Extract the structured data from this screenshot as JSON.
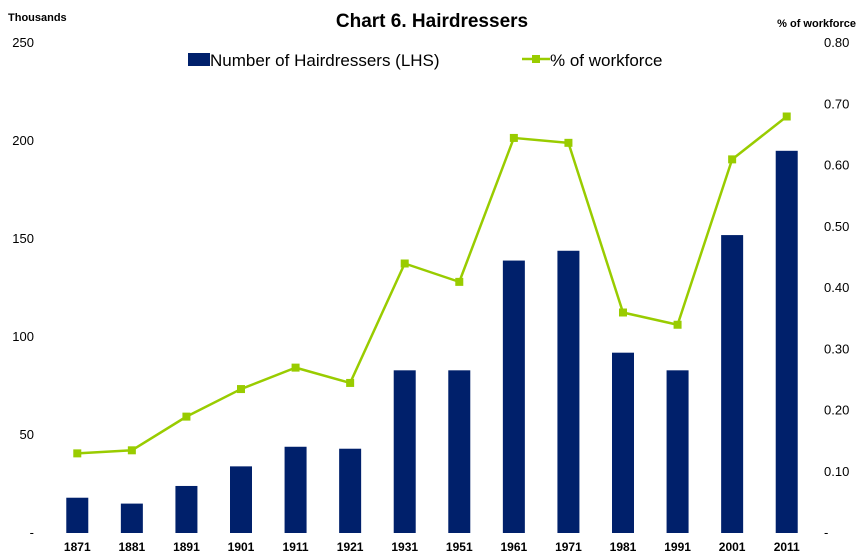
{
  "chart_data": {
    "type": "bar",
    "title": "Chart 6. Hairdressers",
    "y_left_label": "Thousands",
    "y_right_label": "% of workforce",
    "categories": [
      "1871",
      "1881",
      "1891",
      "1901",
      "1911",
      "1921",
      "1931",
      "1951",
      "1961",
      "1971",
      "1981",
      "1991",
      "2001",
      "2011"
    ],
    "series": [
      {
        "name": "Number of Hairdressers (LHS)",
        "type": "bar",
        "axis": "left",
        "color": "#00206B",
        "values": [
          18,
          15,
          24,
          34,
          44,
          43,
          83,
          83,
          139,
          144,
          92,
          83,
          152,
          195
        ]
      },
      {
        "name": "% of workforce",
        "type": "line",
        "axis": "right",
        "color": "#99CC00",
        "values": [
          0.13,
          0.135,
          0.19,
          0.235,
          0.27,
          0.245,
          0.44,
          0.41,
          0.645,
          0.637,
          0.36,
          0.34,
          0.61,
          0.68
        ]
      }
    ],
    "y_left": {
      "min": 0,
      "max": 250,
      "ticks": [
        "-",
        "50",
        "100",
        "150",
        "200",
        "250"
      ]
    },
    "y_right": {
      "min": 0,
      "max": 0.8,
      "ticks": [
        "-",
        "0.10",
        "0.20",
        "0.30",
        "0.40",
        "0.50",
        "0.60",
        "0.70",
        "0.80"
      ]
    },
    "grid": false,
    "legend_position": "top"
  }
}
